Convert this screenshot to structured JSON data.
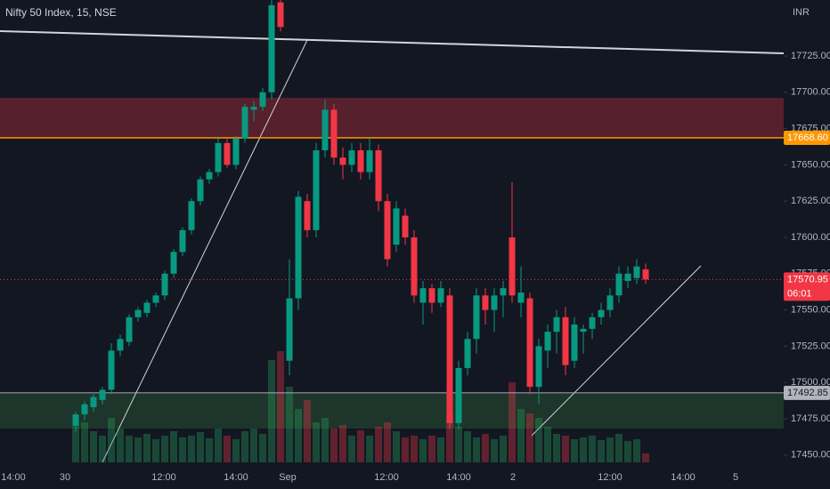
{
  "chart_data": {
    "type": "candlestick",
    "title": "Nifty 50 Index, 15, NSE",
    "currency": "INR",
    "up_color": "#089981",
    "down_color": "#f23645",
    "open": [
      17470,
      17478,
      17483,
      17488,
      17495,
      17522,
      17528,
      17545,
      17548,
      17555,
      17560,
      17575,
      17590,
      17605,
      17625,
      17640,
      17645,
      17665,
      17650,
      17668,
      17688,
      17690,
      17700,
      17762,
      17515,
      17558,
      17625,
      17605,
      17660,
      17688,
      17655,
      17650,
      17660,
      17645,
      17660,
      17625,
      17595,
      17615,
      17600,
      17555,
      17565,
      17555,
      17560,
      17472,
      17510,
      17530,
      17560,
      17550,
      17560,
      17600,
      17555,
      17558,
      17497,
      17522,
      17535,
      17545,
      17515,
      17535,
      17537,
      17545,
      17550,
      17560,
      17570,
      17572,
      17578
    ],
    "high": [
      17480,
      17487,
      17492,
      17497,
      17527,
      17533,
      17547,
      17552,
      17557,
      17562,
      17577,
      17592,
      17607,
      17627,
      17642,
      17647,
      17668,
      17668,
      17670,
      17692,
      17694,
      17703,
      17765,
      17765,
      17585,
      17632,
      17630,
      17665,
      17695,
      17692,
      17662,
      17665,
      17665,
      17668,
      17664,
      17630,
      17625,
      17620,
      17605,
      17570,
      17568,
      17570,
      17565,
      17515,
      17535,
      17565,
      17565,
      17565,
      17570,
      17638,
      17580,
      17562,
      17530,
      17540,
      17550,
      17552,
      17545,
      17540,
      17548,
      17555,
      17565,
      17580,
      17580,
      17585,
      17582
    ],
    "low": [
      17466,
      17474,
      17480,
      17485,
      17492,
      17518,
      17525,
      17542,
      17545,
      17552,
      17557,
      17572,
      17587,
      17602,
      17622,
      17637,
      17642,
      17648,
      17647,
      17665,
      17680,
      17687,
      17695,
      17742,
      17505,
      17550,
      17600,
      17600,
      17655,
      17650,
      17640,
      17645,
      17640,
      17640,
      17618,
      17580,
      17590,
      17595,
      17555,
      17540,
      17548,
      17552,
      17468,
      17468,
      17505,
      17520,
      17540,
      17535,
      17545,
      17555,
      17545,
      17492,
      17485,
      17510,
      17520,
      17505,
      17510,
      17520,
      17530,
      17540,
      17545,
      17555,
      17565,
      17568,
      17568
    ],
    "close": [
      17478,
      17485,
      17490,
      17495,
      17522,
      17530,
      17545,
      17550,
      17555,
      17560,
      17575,
      17590,
      17605,
      17625,
      17640,
      17645,
      17665,
      17650,
      17668,
      17690,
      17690,
      17700,
      17760,
      17745,
      17558,
      17628,
      17605,
      17660,
      17688,
      17655,
      17650,
      17660,
      17645,
      17660,
      17625,
      17585,
      17620,
      17600,
      17560,
      17565,
      17555,
      17565,
      17472,
      17510,
      17530,
      17560,
      17550,
      17560,
      17565,
      17560,
      17562,
      17497,
      17525,
      17535,
      17545,
      17512,
      17540,
      17537,
      17545,
      17550,
      17560,
      17575,
      17575,
      17580,
      17570.95
    ],
    "volume": [
      40,
      45,
      35,
      30,
      50,
      38,
      30,
      28,
      32,
      26,
      30,
      35,
      28,
      30,
      34,
      27,
      38,
      30,
      26,
      35,
      38,
      32,
      115,
      125,
      85,
      60,
      70,
      45,
      50,
      38,
      42,
      30,
      36,
      30,
      40,
      45,
      35,
      28,
      30,
      26,
      30,
      28,
      55,
      40,
      35,
      28,
      32,
      26,
      30,
      90,
      60,
      55,
      50,
      40,
      32,
      30,
      26,
      28,
      30,
      25,
      28,
      32,
      24,
      26,
      10
    ],
    "ylim": [
      17445,
      17763.6
    ],
    "yticks": [
      {
        "value": 17450,
        "label": "17450.00"
      },
      {
        "value": 17475,
        "label": "17475.00"
      },
      {
        "value": 17500,
        "label": "17500.00"
      },
      {
        "value": 17525,
        "label": "17525.00"
      },
      {
        "value": 17550,
        "label": "17550.00"
      },
      {
        "value": 17575,
        "label": "17575.00"
      },
      {
        "value": 17600,
        "label": "17600.00"
      },
      {
        "value": 17625,
        "label": "17625.00"
      },
      {
        "value": 17650,
        "label": "17650.00"
      },
      {
        "value": 17675,
        "label": "17675.00"
      },
      {
        "value": 17700,
        "label": "17700.00"
      },
      {
        "value": 17725,
        "label": "17725.00"
      }
    ],
    "time_labels": [
      "14:00",
      "30",
      "12:00",
      "14:00",
      "Sep",
      "12:00",
      "14:00",
      "2",
      "12:00",
      "14:00",
      "5"
    ],
    "levels": [
      {
        "value": 17668.6,
        "label": "17668.60",
        "color": "#ff9800"
      },
      {
        "value": 17570.95,
        "label": "17570.95",
        "color": "#f23645"
      },
      {
        "value": 17492.85,
        "label": "17492.85",
        "color": "#b2b5be"
      }
    ],
    "countdown": "06:01"
  }
}
